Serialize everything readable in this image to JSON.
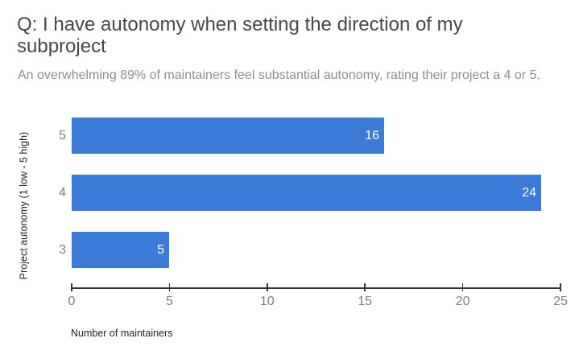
{
  "chart_data": {
    "type": "bar",
    "orientation": "horizontal",
    "title": "Q: I have autonomy when setting the direction of my subproject",
    "subtitle": "An overwhelming 89% of maintainers feel substantial autonomy, rating their project a 4 or 5.",
    "categories": [
      "5",
      "4",
      "3"
    ],
    "values": [
      16,
      24,
      5
    ],
    "xlabel": "Number of maintainers",
    "ylabel": "Project autonomy (1 low - 5 high)",
    "xlim": [
      0,
      25
    ],
    "xticks": [
      0,
      5,
      10,
      15,
      20,
      25
    ],
    "grid": "off",
    "legend": "none",
    "bar_color": "#3d7bd9",
    "value_label_color": "#ffffff",
    "title_color": "#474747",
    "subtitle_color": "#8e8e8e",
    "axis_label_color": "#7d7d7d"
  }
}
